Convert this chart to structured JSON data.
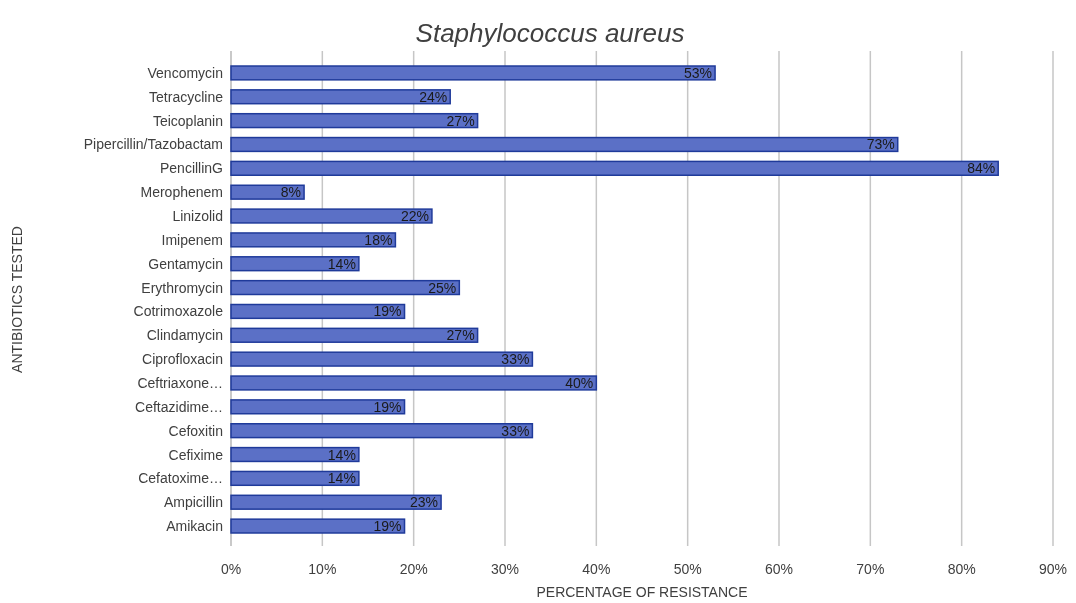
{
  "chart_data": {
    "type": "bar",
    "orientation": "horizontal",
    "title": "Staphylococcus aureus",
    "xlabel": "PERCENTAGE OF RESISTANCE",
    "ylabel": "ANTIBIOTICS TESTED",
    "categories": [
      "Vencomycin",
      "Tetracycline",
      "Teicoplanin",
      "Pipercillin/Tazobactam",
      "PencillinG",
      "Merophenem",
      "Linizolid",
      "Imipenem",
      "Gentamycin",
      "Erythromycin",
      "Cotrimoxazole",
      "Clindamycin",
      "Ciprofloxacin",
      "Ceftriaxone…",
      "Ceftazidime…",
      "Cefoxitin",
      "Cefixime",
      "Cefatoxime…",
      "Ampicillin",
      "Amikacin"
    ],
    "values": [
      53,
      24,
      27,
      73,
      84,
      8,
      22,
      18,
      14,
      25,
      19,
      27,
      33,
      40,
      19,
      33,
      14,
      14,
      23,
      19
    ],
    "value_labels": [
      "53%",
      "24%",
      "27%",
      "73%",
      "84%",
      "8%",
      "22%",
      "18%",
      "14%",
      "25%",
      "19%",
      "27%",
      "33%",
      "40%",
      "19%",
      "33%",
      "14%",
      "14%",
      "23%",
      "19%"
    ],
    "color": "#5b70c6",
    "xlim": [
      0,
      90
    ],
    "xticks": [
      {
        "value": 0,
        "label": "0%"
      },
      {
        "value": 10,
        "label": "10%"
      },
      {
        "value": 20,
        "label": "20%"
      },
      {
        "value": 30,
        "label": "30%"
      },
      {
        "value": 40,
        "label": "40%"
      },
      {
        "value": 50,
        "label": "50%"
      },
      {
        "value": 60,
        "label": "60%"
      },
      {
        "value": 70,
        "label": "70%"
      },
      {
        "value": 80,
        "label": "80%"
      },
      {
        "value": 90,
        "label": "90%"
      }
    ],
    "grid": "x"
  }
}
